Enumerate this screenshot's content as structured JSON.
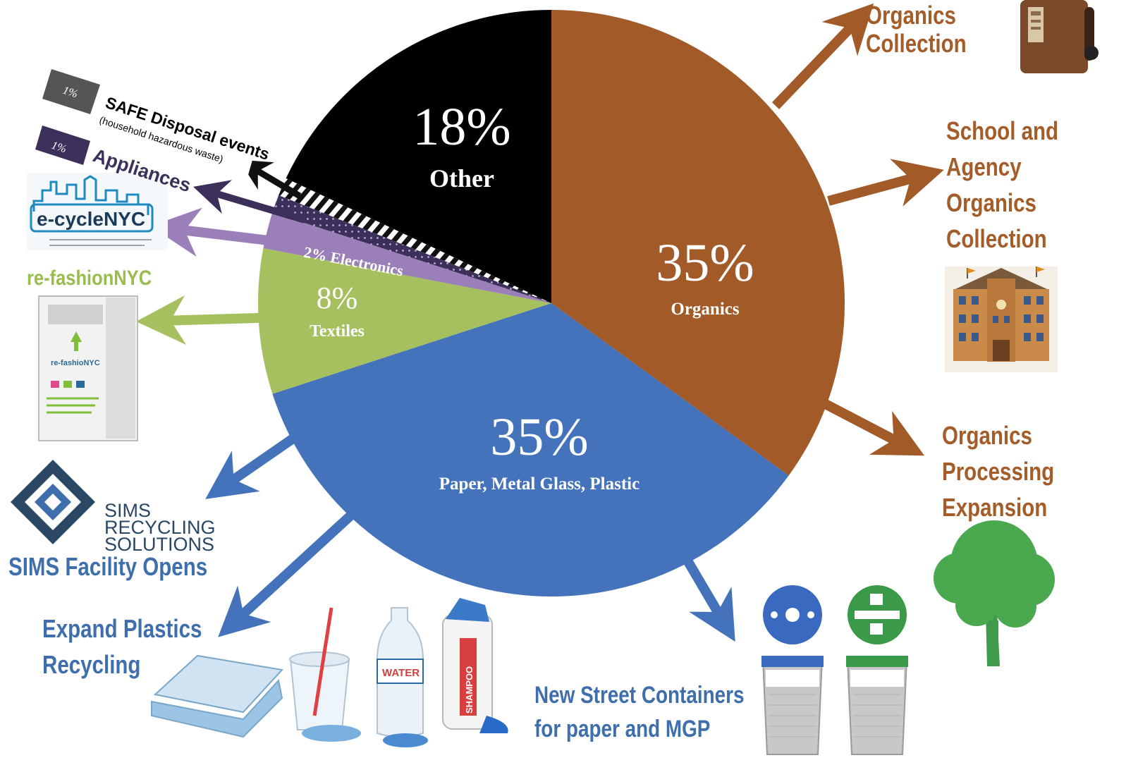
{
  "chart_data": {
    "type": "pie",
    "title": "",
    "slices": [
      {
        "label": "Organics",
        "value": 35,
        "display": "35%",
        "color": "#a35a29"
      },
      {
        "label": "Paper, Metal Glass, Plastic",
        "value": 35,
        "display": "35%",
        "color": "#4473bc"
      },
      {
        "label": "Textiles",
        "value": 8,
        "display": "8%",
        "color": "#a6c05f"
      },
      {
        "label": "Electronics",
        "value": 2,
        "display": "2% Electronics",
        "color": "#9b7fb8"
      },
      {
        "label": "Appliances",
        "value": 1,
        "display": "1%",
        "color": "#3c2f59"
      },
      {
        "label": "SAFE Disposal events",
        "value": 1,
        "display": "1%",
        "color": "#333333"
      },
      {
        "label": "Other",
        "value": 18,
        "display": "18%",
        "color": "#000000"
      }
    ]
  },
  "labels": {
    "organics_collection": [
      "Organics",
      "Collection"
    ],
    "school_agency": [
      "School and",
      "Agency",
      "Organics",
      "Collection"
    ],
    "organics_processing": [
      "Organics",
      "Processing",
      "Expansion"
    ],
    "sims_facility": "SIMS Facility Opens",
    "sims_logo": [
      "SIMS",
      "RECYCLING",
      "SOLUTIONS"
    ],
    "expand_plastics": [
      "Expand Plastics",
      "Recycling"
    ],
    "street_containers": [
      "New Street Containers",
      "for paper and MGP"
    ],
    "refashion": "re-fashionNYC",
    "refashion_bin": "re-fashioNYC",
    "ecycle": "e-cycleNYC",
    "safe_pct": "1%",
    "safe_title": "SAFE Disposal events",
    "safe_sub": "(household hazardous waste)",
    "appliances_pct": "1%",
    "appliances": "Appliances",
    "water": "WATER",
    "shampoo": "SHAMPOO"
  },
  "colors": {
    "organics": "#a35a29",
    "paper_mgp": "#4473bc",
    "textiles": "#a6c05f",
    "electronics": "#9b7fb8",
    "appliances": "#3c2f59",
    "other": "#000000",
    "label_brown": "#a45c28",
    "label_blue": "#3f6ead"
  }
}
